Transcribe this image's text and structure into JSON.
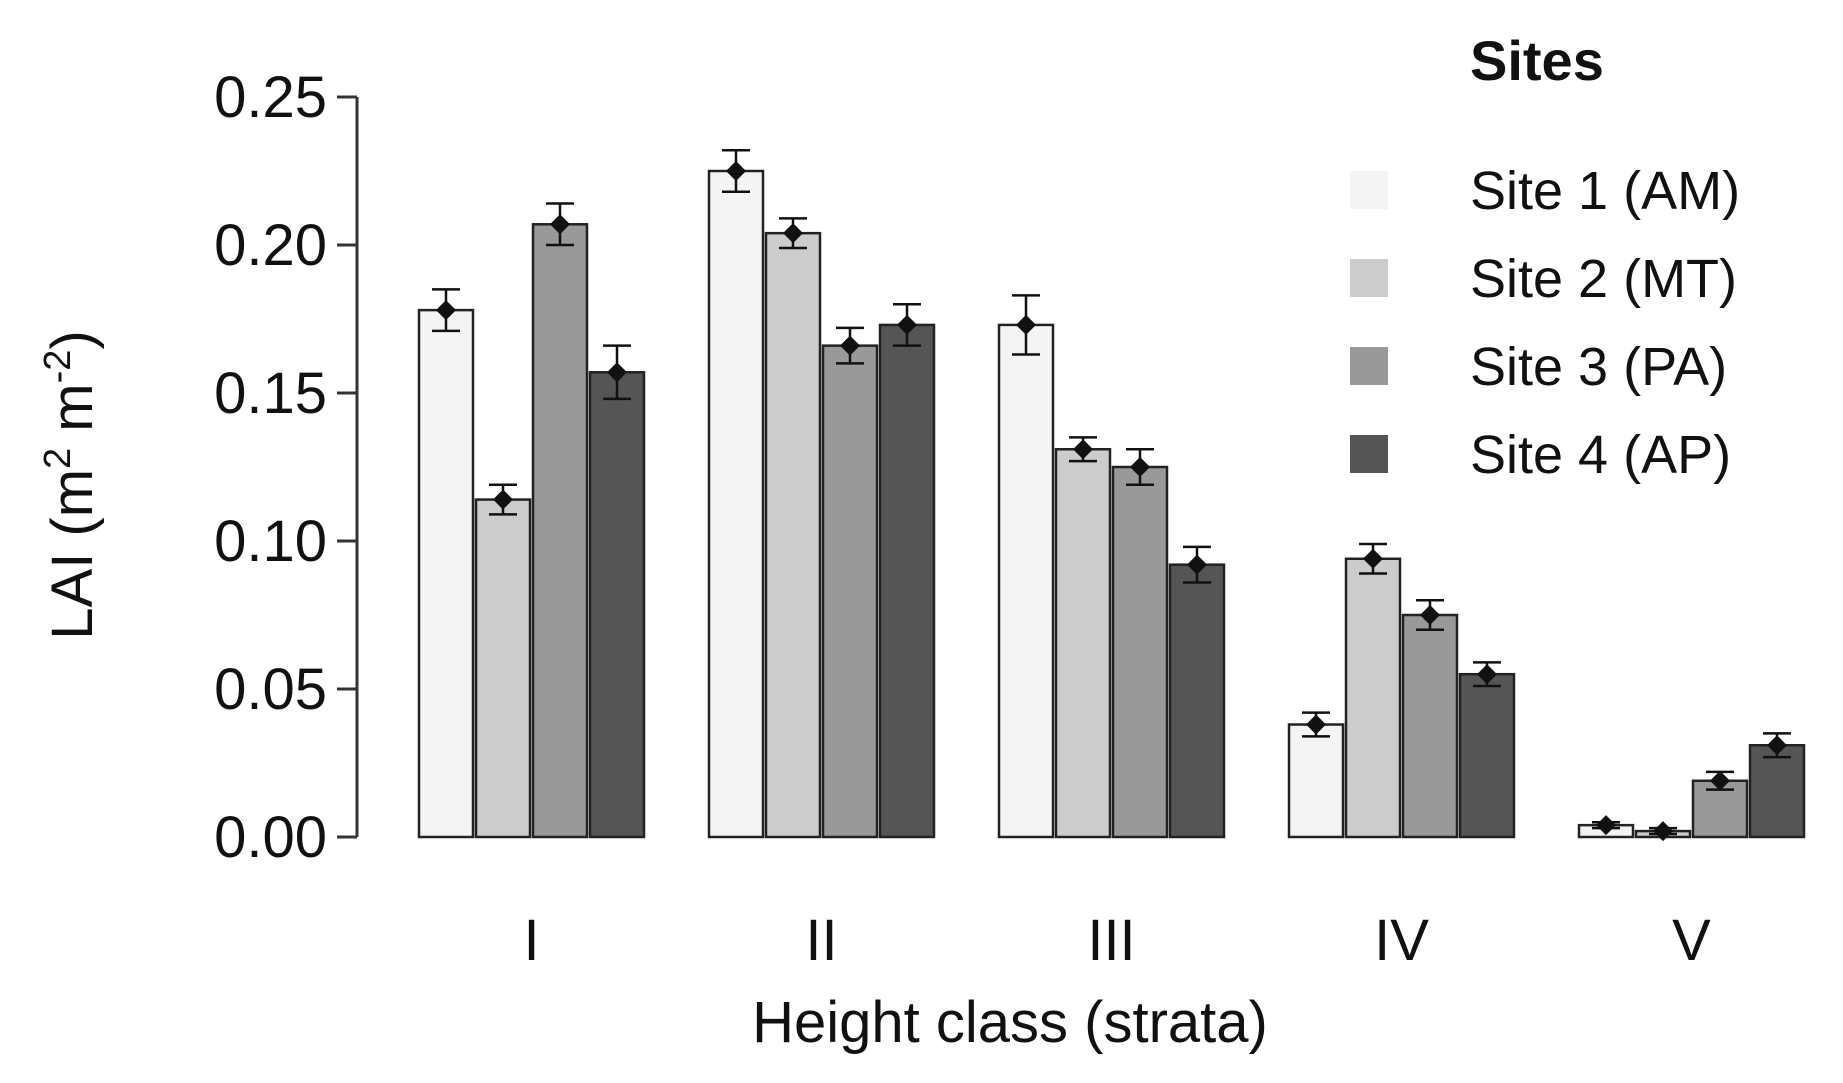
{
  "chart_data": {
    "type": "bar",
    "xlabel": "Height class (strata)",
    "ylabel_main": "LAI (m",
    "ylabel_sup1": "2",
    "ylabel_mid": " m",
    "ylabel_sup2": "-2",
    "ylabel_end": ")",
    "ylim": [
      0,
      0.25
    ],
    "yticks": [
      "0.00",
      "0.05",
      "0.10",
      "0.15",
      "0.20",
      "0.25"
    ],
    "categories": [
      "I",
      "II",
      "III",
      "IV",
      "V"
    ],
    "legend_title": "Sites",
    "legend_position": "top-right",
    "series": [
      {
        "name": "Site 1 (AM)",
        "color": "#f4f4f4",
        "values": [
          0.178,
          0.225,
          0.173,
          0.038,
          0.004
        ],
        "errors": [
          0.007,
          0.007,
          0.01,
          0.004,
          0.001
        ]
      },
      {
        "name": "Site 2 (MT)",
        "color": "#cccccc",
        "values": [
          0.114,
          0.204,
          0.131,
          0.094,
          0.002
        ],
        "errors": [
          0.005,
          0.005,
          0.004,
          0.005,
          0.001
        ]
      },
      {
        "name": "Site 3 (PA)",
        "color": "#999999",
        "values": [
          0.207,
          0.166,
          0.125,
          0.075,
          0.019
        ],
        "errors": [
          0.007,
          0.006,
          0.006,
          0.005,
          0.003
        ]
      },
      {
        "name": "Site 4 (AP)",
        "color": "#555555",
        "values": [
          0.157,
          0.173,
          0.092,
          0.055,
          0.031
        ],
        "errors": [
          0.009,
          0.007,
          0.006,
          0.004,
          0.004
        ]
      }
    ]
  }
}
